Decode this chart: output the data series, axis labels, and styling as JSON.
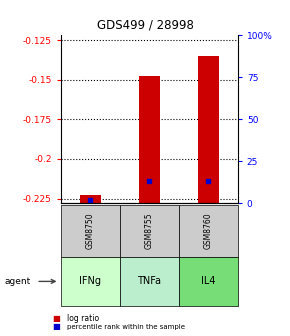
{
  "title": "GDS499 / 28998",
  "samples": [
    "GSM8750",
    "GSM8755",
    "GSM8760"
  ],
  "agents": [
    "IFNg",
    "TNFa",
    "IL4"
  ],
  "log_ratios": [
    -0.223,
    -0.148,
    -0.135
  ],
  "percentile_ranks_pct": [
    2,
    13,
    13
  ],
  "ylim_log": [
    -0.228,
    -0.122
  ],
  "yticks_log": [
    -0.125,
    -0.15,
    -0.175,
    -0.2,
    -0.225
  ],
  "yticks_pct": [
    100,
    75,
    50,
    25,
    0
  ],
  "bar_color": "#cc0000",
  "pct_color": "#0000cc",
  "sample_bg": "#cccccc",
  "agent_bg_colors": [
    "#ccffcc",
    "#bbeecc",
    "#77dd77"
  ],
  "legend_log_color": "#cc0000",
  "legend_pct_color": "#0000cc",
  "bar_width": 0.35
}
